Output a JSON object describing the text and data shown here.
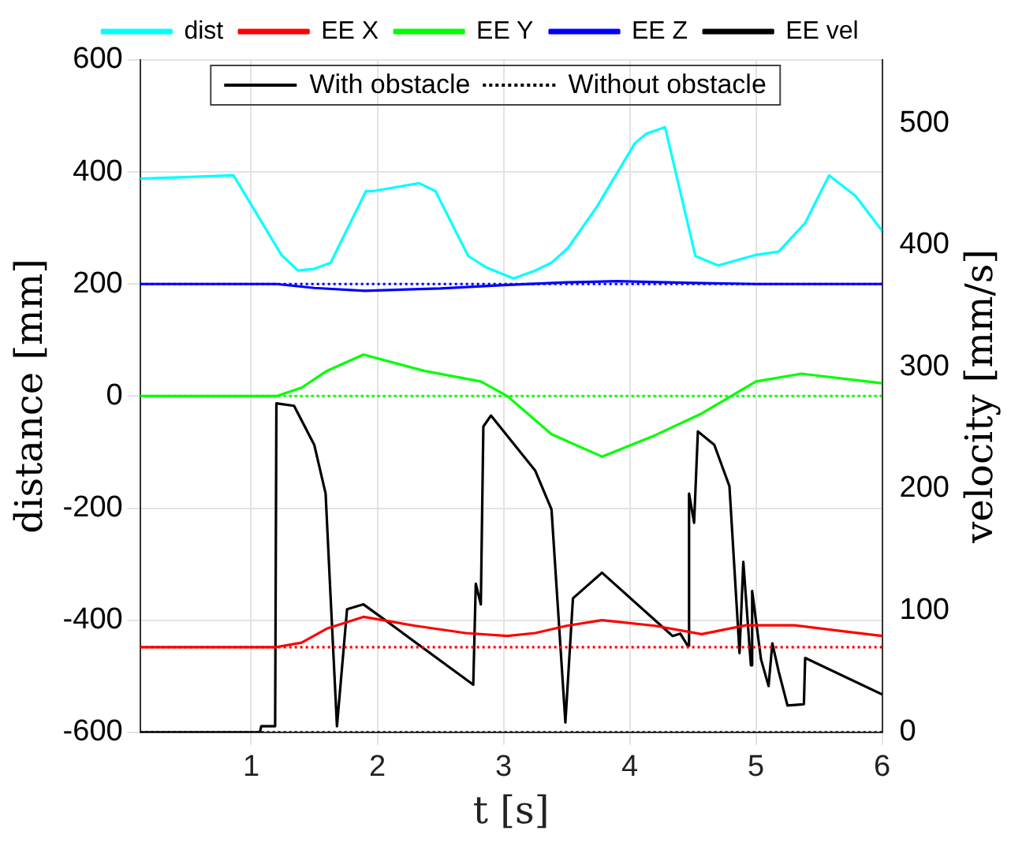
{
  "chart_data": {
    "type": "line",
    "xlabel": "t [s]",
    "ylabel": "distance [mm]",
    "y2label": "velocity [mm/s]",
    "xlim": [
      0.12,
      6
    ],
    "xticks": [
      1,
      2,
      3,
      4,
      5,
      6
    ],
    "ylim": [
      -600,
      600
    ],
    "yticks": [
      -600,
      -400,
      -200,
      0,
      200,
      400,
      600
    ],
    "y2lim": [
      0,
      552
    ],
    "y2ticks": [
      0,
      100,
      200,
      300,
      400,
      500
    ],
    "grid": true,
    "legend": "top",
    "marker": "none",
    "annotations": [
      "With obstacle",
      "Without obstacle"
    ],
    "series": [
      {
        "name": "dist",
        "color": "#00ffff",
        "x": [
          0.12,
          0.86,
          1.01,
          1.24,
          1.37,
          1.5,
          1.63,
          1.91,
          1.97,
          2.33,
          2.46,
          2.72,
          2.86,
          3.08,
          3.25,
          3.38,
          3.51,
          3.74,
          4.04,
          4.13,
          4.28,
          4.52,
          4.7,
          5.0,
          5.18,
          5.39,
          5.58,
          5.79,
          6.0
        ],
        "values": [
          388,
          394,
          338,
          252,
          224,
          227,
          238,
          366,
          366,
          380,
          366,
          250,
          230,
          210,
          224,
          238,
          264,
          338,
          451,
          468,
          480,
          250,
          233,
          252,
          258,
          309,
          394,
          357,
          295
        ]
      },
      {
        "name": "EE X",
        "color": "#ff0000",
        "x": [
          0.12,
          1.2,
          1.4,
          1.6,
          1.89,
          2.3,
          2.7,
          3.03,
          3.25,
          3.5,
          3.78,
          4.2,
          4.57,
          4.92,
          5.3,
          5.7,
          6.0
        ],
        "values": [
          -448,
          -448,
          -440,
          -415,
          -394,
          -410,
          -423,
          -428,
          -423,
          -410,
          -400,
          -410,
          -425,
          -409,
          -409,
          -420,
          -428
        ]
      },
      {
        "color": "#ff0000",
        "line_style": "dotted",
        "x": [
          0.12,
          6.0
        ],
        "values": [
          -448,
          -448
        ]
      },
      {
        "name": "EE Y",
        "color": "#00ff00",
        "x": [
          0.12,
          1.2,
          1.4,
          1.6,
          1.89,
          2.37,
          2.82,
          3.03,
          3.38,
          3.78,
          4.2,
          4.57,
          5.0,
          5.36,
          6.0
        ],
        "values": [
          0,
          0,
          15,
          45,
          74,
          45,
          26,
          0,
          -68,
          -108,
          -70,
          -31,
          26,
          40,
          23
        ]
      },
      {
        "color": "#00ff00",
        "line_style": "dotted",
        "x": [
          0.12,
          6.0
        ],
        "values": [
          0,
          0
        ]
      },
      {
        "name": "EE Z",
        "color": "#0000ff",
        "x": [
          0.12,
          1.2,
          1.5,
          1.9,
          2.5,
          3.0,
          3.5,
          3.9,
          4.5,
          5.0,
          6.0
        ],
        "values": [
          200,
          200,
          193,
          188,
          192,
          198,
          203,
          205,
          202,
          200,
          200
        ]
      },
      {
        "color": "#0000ff",
        "line_style": "dotted",
        "x": [
          0.12,
          6.0
        ],
        "values": [
          200,
          200
        ]
      },
      {
        "name": "EE vel",
        "color": "#000000",
        "axis": "y2",
        "x": [
          0.12,
          1.07,
          1.08,
          1.19,
          1.2,
          1.34,
          1.5,
          1.59,
          1.63,
          1.68,
          1.76,
          1.89,
          2.05,
          2.76,
          2.78,
          2.82,
          2.84,
          2.9,
          3.25,
          3.38,
          3.49,
          3.55,
          3.78,
          4.34,
          4.4,
          4.46,
          4.47,
          4.51,
          4.54,
          4.67,
          4.79,
          4.87,
          4.9,
          4.96,
          4.97,
          5.04,
          5.1,
          5.13,
          5.18,
          5.25,
          5.38,
          5.39,
          6.0
        ],
        "values": [
          0,
          0,
          5,
          5,
          270,
          268,
          236,
          196,
          110,
          5,
          101,
          105,
          93,
          39,
          122,
          105,
          251,
          260,
          215,
          183,
          8,
          110,
          131,
          79,
          81,
          71,
          196,
          172,
          247,
          236,
          202,
          65,
          140,
          55,
          116,
          60,
          38,
          73,
          50,
          22,
          23,
          61,
          31
        ]
      },
      {
        "color": "#000000",
        "axis": "y2",
        "line_style": "dotted",
        "x": [
          0.12,
          6.0
        ],
        "values": [
          0,
          0
        ]
      }
    ]
  }
}
